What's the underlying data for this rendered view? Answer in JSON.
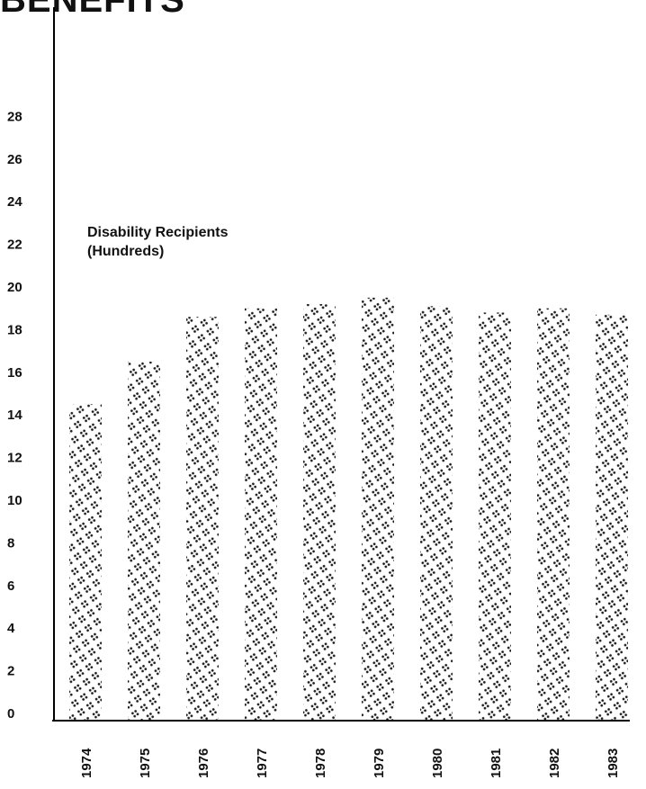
{
  "page": {
    "title": "BENEFITS"
  },
  "chart_data": {
    "type": "bar",
    "title": "BENEFITS",
    "annotation_line1": "Disability Recipients",
    "annotation_line2": "(Hundreds)",
    "categories": [
      "1974",
      "1975",
      "1976",
      "1977",
      "1978",
      "1979",
      "1980",
      "1981",
      "1982",
      "1983"
    ],
    "values": [
      14.5,
      16.5,
      18.6,
      19.0,
      19.2,
      19.5,
      19.1,
      18.8,
      19.0,
      18.7
    ],
    "yticks": [
      0,
      2,
      4,
      6,
      8,
      10,
      12,
      14,
      16,
      18,
      20,
      22,
      24,
      26,
      28
    ],
    "ylim": [
      0,
      28
    ],
    "grid": false,
    "colors": {
      "bar": "#1a1a1a",
      "axis": "#000000"
    }
  }
}
